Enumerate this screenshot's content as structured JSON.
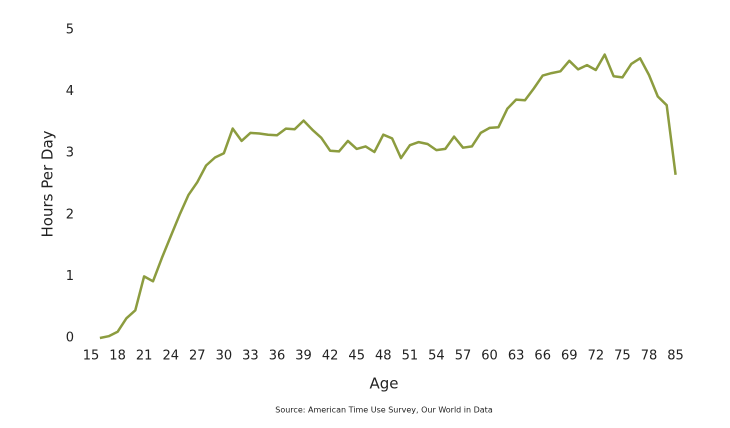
{
  "chart_data": {
    "type": "line",
    "x_label": "Age",
    "y_label": "Hours Per Day",
    "source": "Source: American Time Use Survey, Our World in Data",
    "categories": [
      "15",
      null,
      null,
      "18",
      null,
      null,
      "21",
      null,
      null,
      "24",
      null,
      null,
      "27",
      null,
      null,
      "30",
      null,
      null,
      "33",
      null,
      null,
      "36",
      null,
      null,
      "39",
      null,
      null,
      "42",
      null,
      null,
      "45",
      null,
      null,
      "48",
      null,
      null,
      "51",
      null,
      null,
      "54",
      null,
      null,
      "57",
      null,
      null,
      "60",
      null,
      null,
      "63",
      null,
      null,
      "66",
      null,
      null,
      "69",
      null,
      null,
      "72",
      null,
      null,
      "75",
      null,
      null,
      "78",
      null,
      null,
      "85"
    ],
    "values": [
      null,
      0.0,
      0.03,
      0.1,
      0.32,
      0.45,
      1.0,
      0.92,
      1.3,
      1.65,
      2.0,
      2.32,
      2.53,
      2.8,
      2.93,
      3.0,
      3.4,
      3.2,
      3.33,
      3.32,
      3.3,
      3.29,
      3.4,
      3.39,
      3.53,
      3.38,
      3.25,
      3.04,
      3.03,
      3.2,
      3.07,
      3.11,
      3.02,
      3.3,
      3.24,
      2.92,
      3.13,
      3.18,
      3.15,
      3.05,
      3.07,
      3.27,
      3.09,
      3.11,
      3.33,
      3.41,
      3.42,
      3.72,
      3.87,
      3.86,
      4.05,
      4.26,
      4.3,
      4.33,
      4.5,
      4.36,
      4.43,
      4.35,
      4.6,
      4.25,
      4.23,
      4.45,
      4.54,
      4.27,
      3.92,
      3.78,
      2.65
    ],
    "color": "#8c9c3f",
    "ylim": [
      0,
      5
    ],
    "yticks": [
      0,
      1,
      2,
      3,
      4,
      5
    ]
  }
}
